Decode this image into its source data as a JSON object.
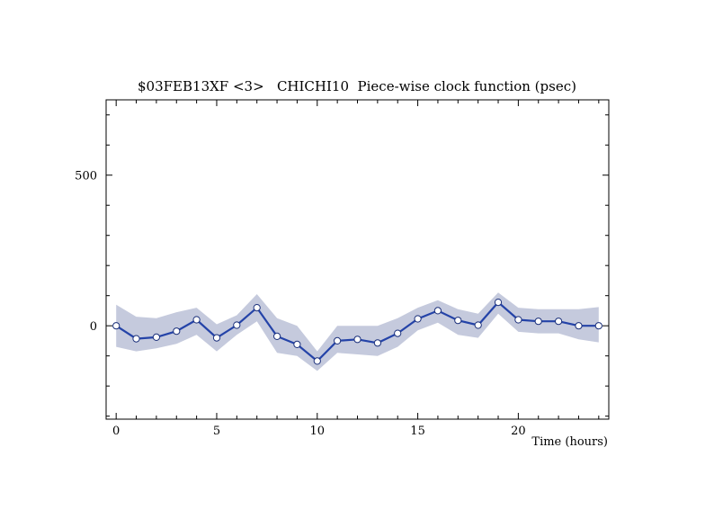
{
  "chart_data": {
    "type": "line",
    "title": "$03FEB13XF <3>   CHICHI10  Piece-wise clock function (psec)",
    "xlabel": "Time (hours)",
    "ylabel": "",
    "xlim": [
      -0.5,
      24.5
    ],
    "ylim": [
      -310,
      750
    ],
    "x_ticks": [
      0,
      5,
      10,
      15,
      20
    ],
    "y_ticks": [
      0,
      500
    ],
    "x": [
      0,
      1,
      2,
      3,
      4,
      5,
      6,
      7,
      8,
      9,
      10,
      11,
      12,
      13,
      14,
      15,
      16,
      17,
      18,
      19,
      20,
      21,
      22,
      23,
      24
    ],
    "values": [
      0,
      -43,
      -38,
      -18,
      20,
      -40,
      2,
      60,
      -35,
      -62,
      -117,
      -50,
      -45,
      -57,
      -25,
      23,
      50,
      18,
      2,
      78,
      20,
      15,
      15,
      0,
      0
    ],
    "band_upper": [
      70,
      30,
      25,
      45,
      60,
      5,
      35,
      105,
      25,
      0,
      -85,
      0,
      0,
      0,
      25,
      60,
      85,
      55,
      40,
      110,
      60,
      55,
      55,
      55,
      62
    ],
    "band_lower": [
      -70,
      -85,
      -75,
      -60,
      -30,
      -85,
      -30,
      15,
      -90,
      -100,
      -150,
      -90,
      -95,
      -100,
      -70,
      -15,
      10,
      -30,
      -40,
      40,
      -20,
      -25,
      -25,
      -45,
      -55
    ],
    "grid": false,
    "colors": {
      "line": "#2443a8",
      "band": "#c5cadd",
      "marker_fill": "#ffffff",
      "marker_stroke": "#1a2f7a",
      "axis": "#000000"
    }
  }
}
